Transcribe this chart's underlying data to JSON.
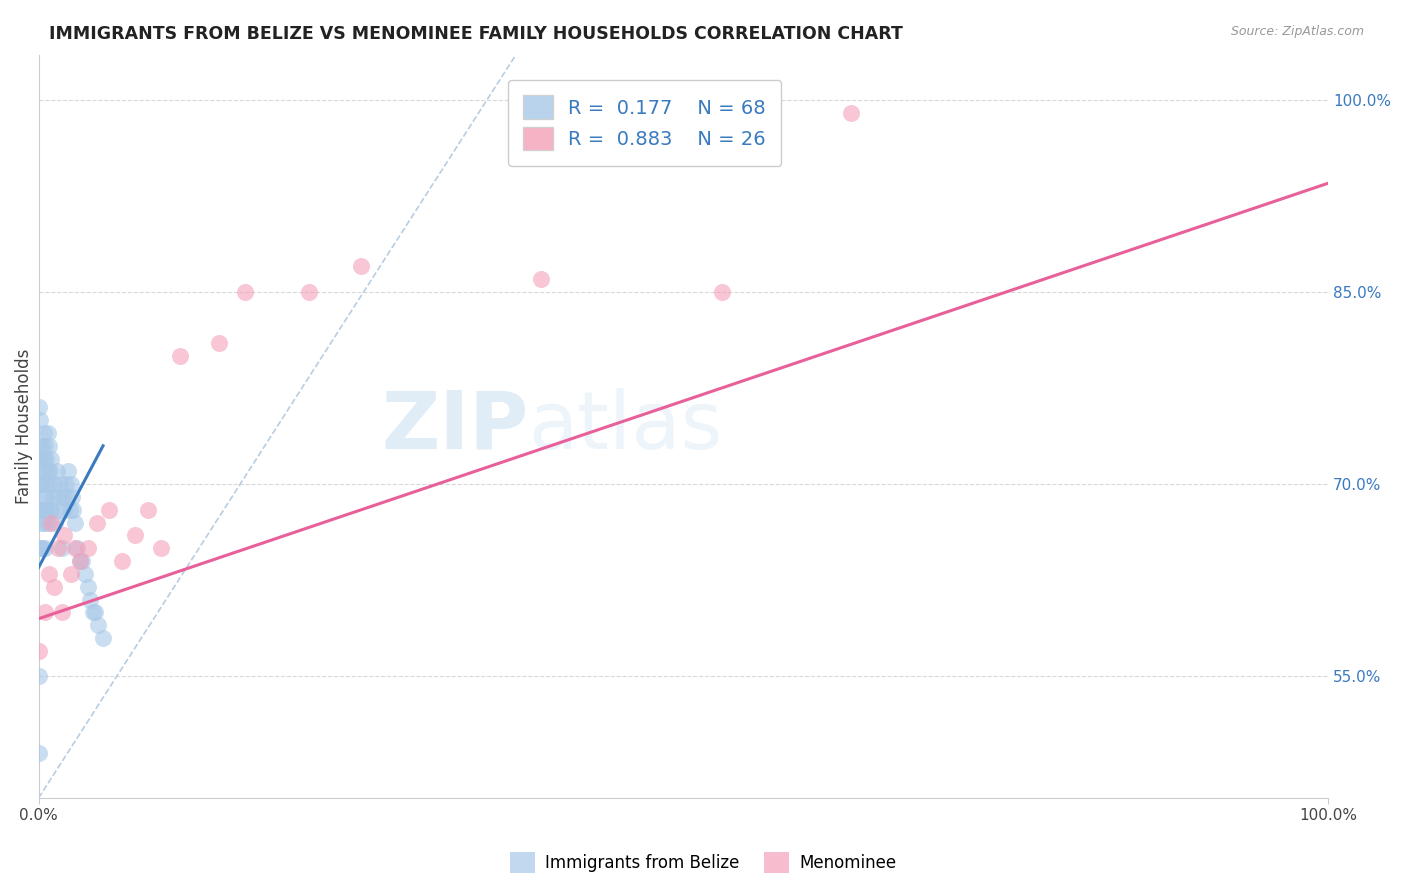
{
  "title": "IMMIGRANTS FROM BELIZE VS MENOMINEE FAMILY HOUSEHOLDS CORRELATION CHART",
  "source_text": "Source: ZipAtlas.com",
  "ylabel": "Family Households",
  "legend_labels": [
    "Immigrants from Belize",
    "Menominee"
  ],
  "blue_R": 0.177,
  "blue_N": 68,
  "pink_R": 0.883,
  "pink_N": 26,
  "blue_color": "#a8c8e8",
  "pink_color": "#f4a0b8",
  "blue_line_color": "#3a7abf",
  "pink_line_color": "#e8609a",
  "diag_color": "#b0c8e0",
  "background_color": "#ffffff",
  "grid_color": "#d8d8d8",
  "xlim": [
    0.0,
    1.0
  ],
  "ylim": [
    0.455,
    1.035
  ],
  "right_yticks": [
    0.55,
    0.7,
    0.85,
    1.0
  ],
  "right_yticklabels": [
    "55.0%",
    "70.0%",
    "85.0%",
    "100.0%"
  ],
  "blue_scatter_x": [
    0.0,
    0.0,
    0.0,
    0.0,
    0.0,
    0.001,
    0.001,
    0.001,
    0.001,
    0.002,
    0.002,
    0.002,
    0.002,
    0.003,
    0.003,
    0.003,
    0.003,
    0.003,
    0.004,
    0.004,
    0.004,
    0.004,
    0.004,
    0.005,
    0.005,
    0.005,
    0.005,
    0.006,
    0.006,
    0.006,
    0.007,
    0.007,
    0.007,
    0.008,
    0.008,
    0.009,
    0.009,
    0.01,
    0.01,
    0.011,
    0.012,
    0.013,
    0.014,
    0.015,
    0.016,
    0.017,
    0.018,
    0.019,
    0.02,
    0.021,
    0.022,
    0.023,
    0.024,
    0.025,
    0.026,
    0.027,
    0.028,
    0.03,
    0.032,
    0.034,
    0.036,
    0.038,
    0.04,
    0.042,
    0.044,
    0.046,
    0.05,
    0.0
  ],
  "blue_scatter_y": [
    0.49,
    0.65,
    0.68,
    0.72,
    0.76,
    0.7,
    0.68,
    0.73,
    0.75,
    0.72,
    0.68,
    0.65,
    0.71,
    0.67,
    0.7,
    0.73,
    0.65,
    0.68,
    0.69,
    0.71,
    0.74,
    0.67,
    0.72,
    0.7,
    0.73,
    0.68,
    0.65,
    0.69,
    0.72,
    0.68,
    0.71,
    0.74,
    0.67,
    0.7,
    0.73,
    0.68,
    0.71,
    0.72,
    0.68,
    0.69,
    0.7,
    0.67,
    0.71,
    0.69,
    0.68,
    0.7,
    0.65,
    0.69,
    0.68,
    0.7,
    0.69,
    0.71,
    0.68,
    0.7,
    0.69,
    0.68,
    0.67,
    0.65,
    0.64,
    0.64,
    0.63,
    0.62,
    0.61,
    0.6,
    0.6,
    0.59,
    0.58,
    0.55
  ],
  "pink_scatter_x": [
    0.0,
    0.005,
    0.008,
    0.01,
    0.012,
    0.015,
    0.018,
    0.02,
    0.025,
    0.028,
    0.032,
    0.038,
    0.045,
    0.055,
    0.065,
    0.075,
    0.085,
    0.095,
    0.11,
    0.14,
    0.16,
    0.21,
    0.25,
    0.39,
    0.53,
    0.63
  ],
  "pink_scatter_y": [
    0.57,
    0.6,
    0.63,
    0.67,
    0.62,
    0.65,
    0.6,
    0.66,
    0.63,
    0.65,
    0.64,
    0.65,
    0.67,
    0.68,
    0.64,
    0.66,
    0.68,
    0.65,
    0.8,
    0.81,
    0.85,
    0.85,
    0.87,
    0.86,
    0.85,
    0.99
  ],
  "blue_line_x": [
    0.0,
    0.05
  ],
  "blue_line_y": [
    0.635,
    0.73
  ],
  "pink_line_x": [
    0.0,
    1.0
  ],
  "pink_line_y": [
    0.595,
    0.935
  ],
  "diag_line_x": [
    0.0,
    0.37
  ],
  "diag_line_y": [
    0.455,
    1.035
  ]
}
